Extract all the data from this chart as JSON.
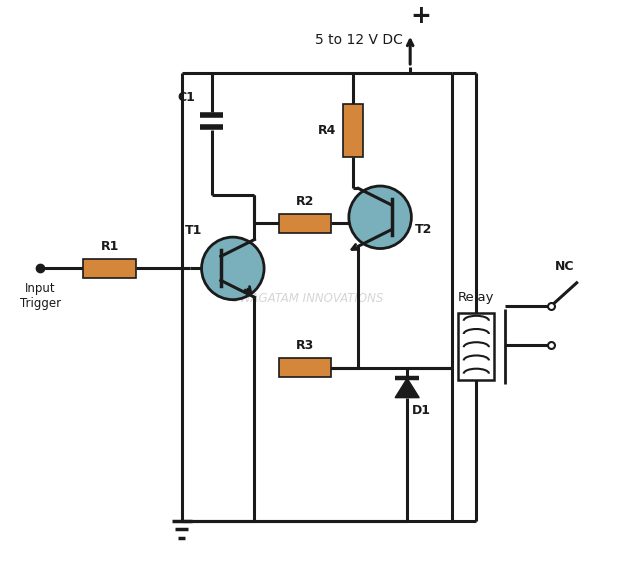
{
  "bg_color": "#ffffff",
  "component_color": "#d4873a",
  "transistor_fill": "#7ab0bc",
  "transistor_border": "#1a1a1a",
  "wire_color": "#1a1a1a",
  "wire_lw": 2.2,
  "vcc_label": "5 to 12 V DC",
  "watermark": "SWAGATAM INNOVATIONS",
  "plus_symbol": "+",
  "nc_label": "NC",
  "relay_label": "Relay",
  "input_label": "Input\nTrigger",
  "component_labels": [
    "R1",
    "R2",
    "R3",
    "R4",
    "C1",
    "T1",
    "T2",
    "D1"
  ]
}
